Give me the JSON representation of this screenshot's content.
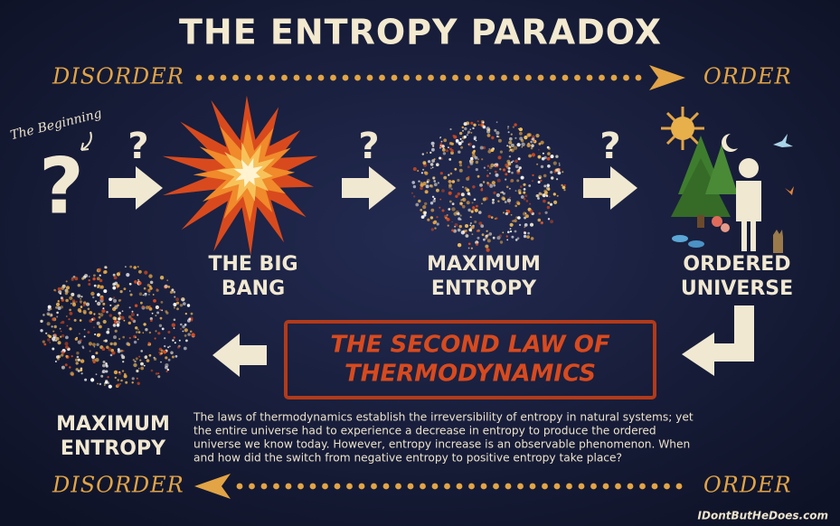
{
  "title": "THE ENTROPY PARADOX",
  "top_axis": {
    "left": "DISORDER",
    "right": "ORDER"
  },
  "bottom_axis": {
    "left": "DISORDER",
    "right": "ORDER"
  },
  "beginning_note": "The Beginning",
  "question_marks": [
    "?",
    "?",
    "?",
    "?"
  ],
  "stages": [
    {
      "label_lines": [
        "THE BIG",
        "BANG"
      ]
    },
    {
      "label_lines": [
        "MAXIMUM",
        "ENTROPY"
      ]
    },
    {
      "label_lines": [
        "ORDERED",
        "UNIVERSE"
      ]
    },
    {
      "label_lines": [
        "MAXIMUM",
        "ENTROPY"
      ]
    }
  ],
  "law": {
    "lines": [
      "THE SECOND LAW OF",
      "THERMODYNAMICS"
    ]
  },
  "paragraph_lines": [
    "The laws of thermodynamics establish the irreversibility of entropy in natural systems; yet",
    "the entire universe had to experience a decrease in entropy to produce the ordered",
    "universe we know today. However, entropy increase is an observable phenomenon. When",
    "and how did the switch from negative entropy to positive entropy take place?"
  ],
  "credit": "IDontButHeDoes.com"
}
